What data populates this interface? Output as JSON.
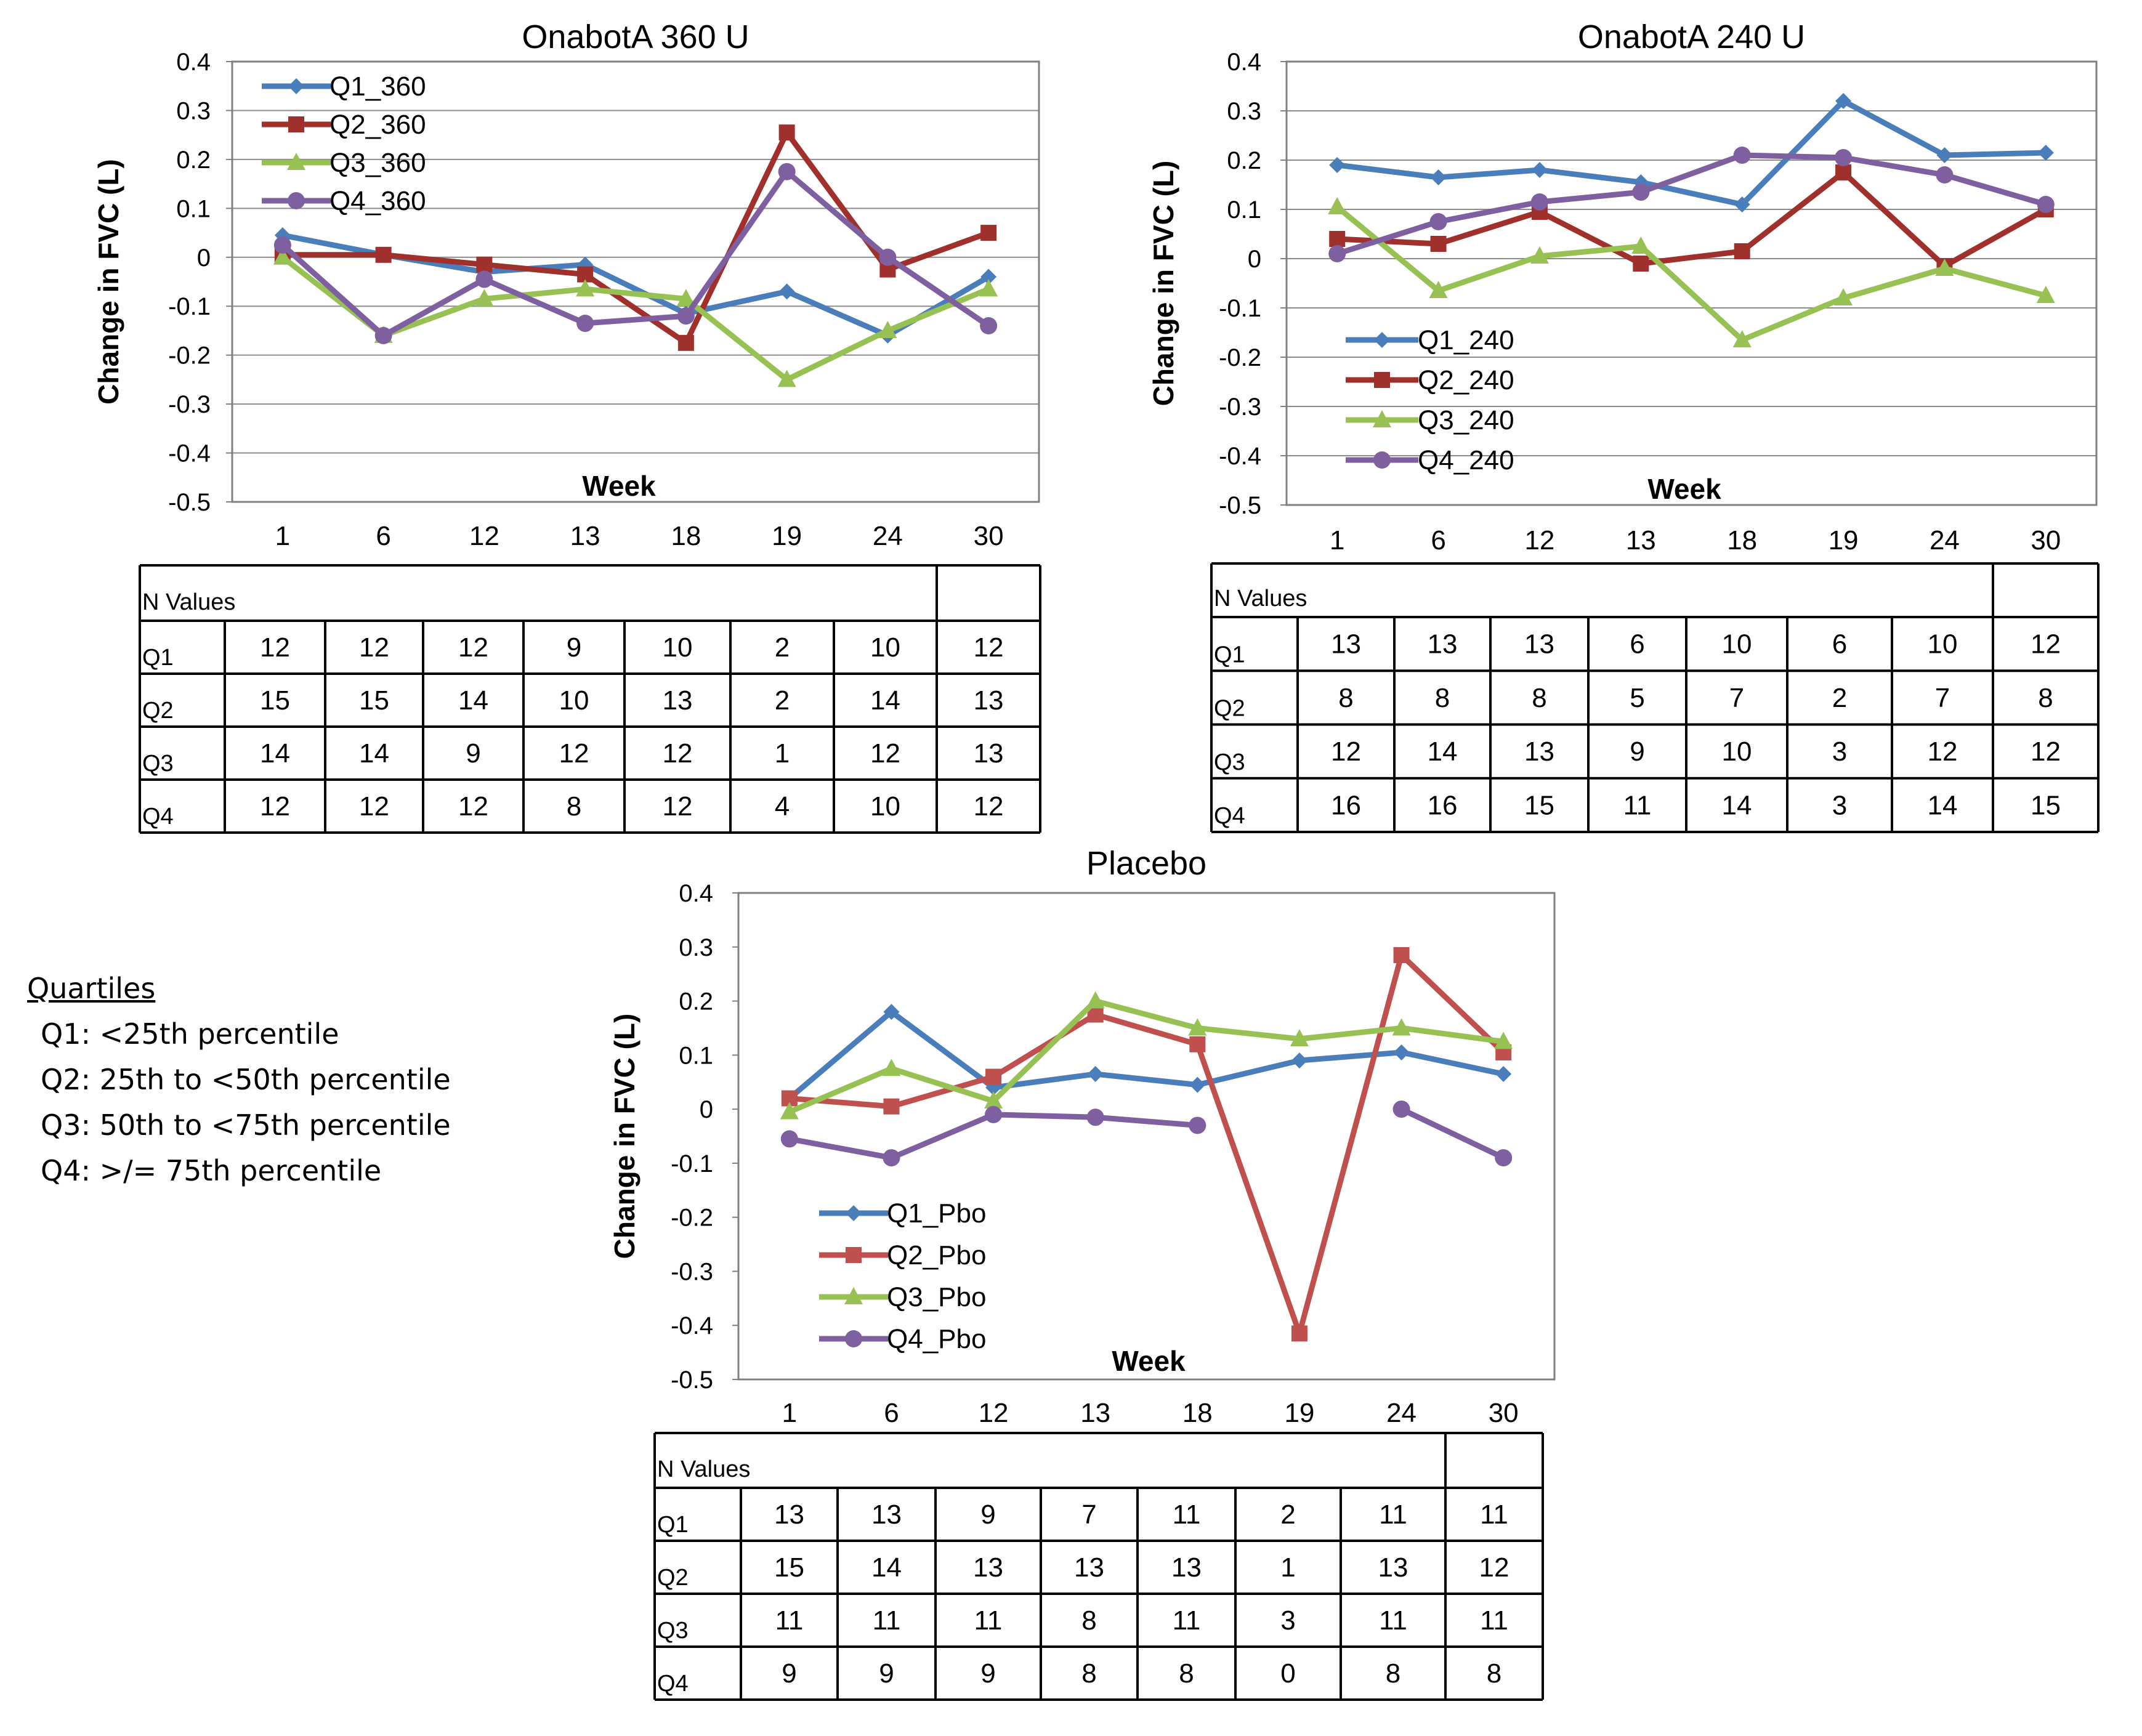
{
  "chart_data": [
    {
      "type": "line",
      "title": "OnabotA 360 U",
      "xlabel": "Week",
      "ylabel": "Change in FVC (L)",
      "categories": [
        "1",
        "6",
        "12",
        "13",
        "18",
        "19",
        "24",
        "30"
      ],
      "ylim": [
        -0.5,
        0.4
      ],
      "yticks": [
        "0.4",
        "0.3",
        "0.2",
        "0.1",
        "0",
        "-0.1",
        "-0.2",
        "-0.3",
        "-0.4",
        "-0.5"
      ],
      "grid": true,
      "legend_position": "top-left",
      "series": [
        {
          "name": "Q1_360",
          "color": "#4A7EBB",
          "marker": "diamond",
          "values": [
            0.045,
            0.005,
            -0.03,
            -0.015,
            -0.115,
            -0.07,
            -0.16,
            -0.04
          ]
        },
        {
          "name": "Q2_360",
          "color": "#A0302C",
          "marker": "square",
          "values": [
            0.005,
            0.005,
            -0.015,
            -0.035,
            -0.175,
            0.255,
            -0.025,
            0.05
          ]
        },
        {
          "name": "Q3_360",
          "color": "#98C153",
          "marker": "triangle",
          "values": [
            0.0,
            -0.16,
            -0.085,
            -0.065,
            -0.085,
            -0.25,
            -0.15,
            -0.065
          ]
        },
        {
          "name": "Q4_360",
          "color": "#7E5FA0",
          "marker": "circle",
          "values": [
            0.025,
            -0.16,
            -0.045,
            -0.135,
            -0.12,
            0.175,
            0.0,
            -0.14
          ]
        }
      ],
      "n_table": {
        "header": "N Values",
        "rows": [
          {
            "label": "Q1",
            "values": [
              "12",
              "12",
              "12",
              "9",
              "10",
              "2",
              "10",
              "12"
            ]
          },
          {
            "label": "Q2",
            "values": [
              "15",
              "15",
              "14",
              "10",
              "13",
              "2",
              "14",
              "13"
            ]
          },
          {
            "label": "Q3",
            "values": [
              "14",
              "14",
              "9",
              "12",
              "12",
              "1",
              "12",
              "13"
            ]
          },
          {
            "label": "Q4",
            "values": [
              "12",
              "12",
              "12",
              "8",
              "12",
              "4",
              "10",
              "12"
            ]
          }
        ]
      }
    },
    {
      "type": "line",
      "title": "OnabotA 240 U",
      "xlabel": "Week",
      "ylabel": "Change in FVC (L)",
      "categories": [
        "1",
        "6",
        "12",
        "13",
        "18",
        "19",
        "24",
        "30"
      ],
      "ylim": [
        -0.5,
        0.4
      ],
      "yticks": [
        "0.4",
        "0.3",
        "0.2",
        "0.1",
        "0",
        "-0.1",
        "-0.2",
        "-0.3",
        "-0.4",
        "-0.5"
      ],
      "grid": true,
      "legend_position": "bottom-left",
      "series": [
        {
          "name": "Q1_240",
          "color": "#4A7EBB",
          "marker": "diamond",
          "values": [
            0.19,
            0.165,
            0.18,
            0.155,
            0.11,
            0.32,
            0.21,
            0.215
          ]
        },
        {
          "name": "Q2_240",
          "color": "#A0302C",
          "marker": "square",
          "values": [
            0.04,
            0.03,
            0.095,
            -0.01,
            0.015,
            0.175,
            -0.015,
            0.1
          ]
        },
        {
          "name": "Q3_240",
          "color": "#98C153",
          "marker": "triangle",
          "values": [
            0.105,
            -0.065,
            0.005,
            0.025,
            -0.165,
            -0.08,
            -0.02,
            -0.075
          ]
        },
        {
          "name": "Q4_240",
          "color": "#7E5FA0",
          "marker": "circle",
          "values": [
            0.01,
            0.075,
            0.115,
            0.135,
            0.21,
            0.205,
            0.17,
            0.11
          ]
        }
      ],
      "n_table": {
        "header": "N Values",
        "rows": [
          {
            "label": "Q1",
            "values": [
              "13",
              "13",
              "13",
              "6",
              "10",
              "6",
              "10",
              "12"
            ]
          },
          {
            "label": "Q2",
            "values": [
              "8",
              "8",
              "8",
              "5",
              "7",
              "2",
              "7",
              "8"
            ]
          },
          {
            "label": "Q3",
            "values": [
              "12",
              "14",
              "13",
              "9",
              "10",
              "3",
              "12",
              "12"
            ]
          },
          {
            "label": "Q4",
            "values": [
              "16",
              "16",
              "15",
              "11",
              "14",
              "3",
              "14",
              "15"
            ]
          }
        ]
      }
    },
    {
      "type": "line",
      "title": "Placebo",
      "xlabel": "Week",
      "ylabel": "Change in FVC (L)",
      "categories": [
        "1",
        "6",
        "12",
        "13",
        "18",
        "19",
        "24",
        "30"
      ],
      "ylim": [
        -0.5,
        0.4
      ],
      "yticks": [
        "0.4",
        "0.3",
        "0.2",
        "0.1",
        "0",
        "-0.1",
        "-0.2",
        "-0.3",
        "-0.4",
        "-0.5"
      ],
      "grid": false,
      "legend_position": "bottom-left",
      "series": [
        {
          "name": "Q1_Pbo",
          "color": "#4A7EBB",
          "marker": "diamond",
          "values": [
            0.02,
            0.18,
            0.04,
            0.065,
            0.045,
            0.09,
            0.105,
            0.065
          ]
        },
        {
          "name": "Q2_Pbo",
          "color": "#C0504D",
          "marker": "square",
          "values": [
            0.02,
            0.005,
            0.06,
            0.175,
            0.12,
            -0.415,
            0.285,
            0.105
          ]
        },
        {
          "name": "Q3_Pbo",
          "color": "#98C153",
          "marker": "triangle",
          "values": [
            -0.005,
            0.075,
            0.015,
            0.2,
            0.15,
            0.13,
            0.15,
            0.125
          ]
        },
        {
          "name": "Q4_Pbo",
          "color": "#7E5FA0",
          "marker": "circle",
          "values": [
            -0.055,
            -0.09,
            -0.01,
            -0.015,
            -0.03,
            null,
            0.0,
            -0.09
          ]
        }
      ],
      "n_table": {
        "header": "N Values",
        "rows": [
          {
            "label": "Q1",
            "values": [
              "13",
              "13",
              "9",
              "7",
              "11",
              "2",
              "11",
              "11"
            ]
          },
          {
            "label": "Q2",
            "values": [
              "15",
              "14",
              "13",
              "13",
              "13",
              "1",
              "13",
              "12"
            ]
          },
          {
            "label": "Q3",
            "values": [
              "11",
              "11",
              "11",
              "8",
              "11",
              "3",
              "11",
              "11"
            ]
          },
          {
            "label": "Q4",
            "values": [
              "9",
              "9",
              "9",
              "8",
              "8",
              "0",
              "8",
              "8"
            ]
          }
        ]
      }
    }
  ],
  "quartiles": {
    "heading": "Quartiles",
    "lines": [
      "Q1: <25th percentile",
      "Q2: 25th to <50th percentile",
      "Q3: 50th to <75th percentile",
      "Q4: >/= 75th percentile"
    ]
  }
}
